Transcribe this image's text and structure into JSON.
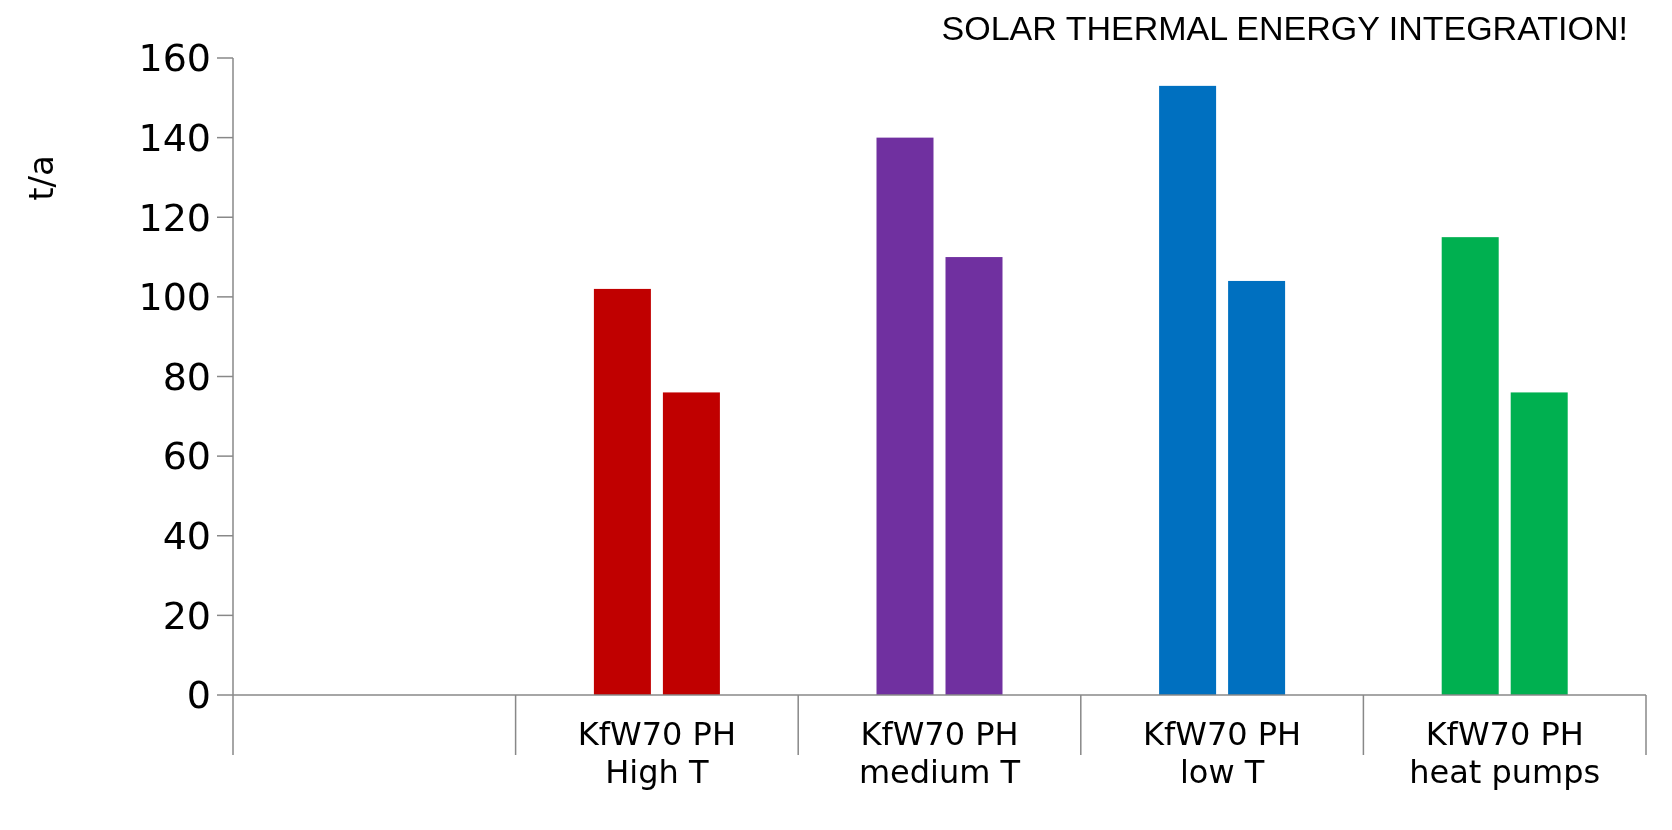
{
  "chart_data": {
    "type": "bar",
    "title": "SOLAR THERMAL ENERGY INTEGRATION!",
    "ylabel": "t/a",
    "categories": [
      null,
      "KfW70 PH\nHigh T",
      "KfW70 PH\nmedium T",
      "KfW70 PH\nlow T",
      "KfW70 PH\nheat pumps"
    ],
    "series": [
      {
        "colors": [
          null,
          "#c00000",
          "#7030a0",
          "#0070c0",
          "#00b050"
        ],
        "values": [
          null,
          102,
          140,
          153,
          115
        ]
      },
      {
        "colors": [
          null,
          "#c00000",
          "#7030a0",
          "#0070c0",
          "#00b050"
        ],
        "values": [
          null,
          76,
          110,
          104,
          76
        ]
      }
    ],
    "ylim": [
      0,
      160
    ],
    "yticks": [
      0,
      20,
      40,
      60,
      80,
      100,
      120,
      140,
      160
    ],
    "grid": false
  }
}
